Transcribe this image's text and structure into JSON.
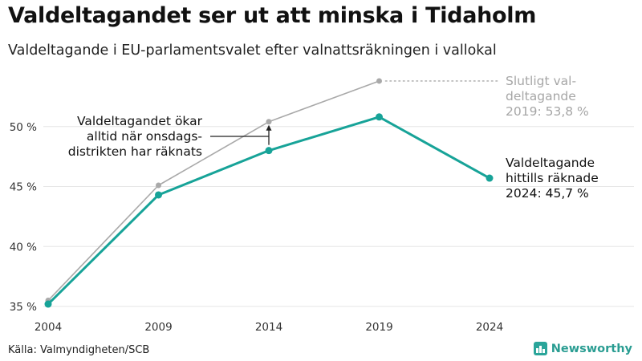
{
  "header": {
    "title": "Valdeltagandet ser ut att minska i Tidaholm",
    "subtitle": "Valdeltagande i EU-parlamentsvalet efter valnattsräkningen i vallokal"
  },
  "footer": {
    "source": "Källa: Valmyndigheten/SCB",
    "brand": "Newsworthy",
    "brand_icon": "bar-chart-icon"
  },
  "colors": {
    "final_series": "#a9a9a9",
    "preliminary_series": "#17a398",
    "grid": "#e6e6e6",
    "annotation": "#222222"
  },
  "chart_data": {
    "type": "line",
    "x": [
      2004,
      2009,
      2014,
      2019,
      2024
    ],
    "x_tick_labels": [
      "2004",
      "2009",
      "2014",
      "2019",
      "2024"
    ],
    "y_tick_values": [
      35,
      40,
      45,
      50
    ],
    "y_tick_labels": [
      "35 %",
      "40 %",
      "45 %",
      "50 %"
    ],
    "ylim": [
      35,
      55
    ],
    "grid": "horizontal",
    "series": [
      {
        "key": "final",
        "values": [
          35.5,
          45.1,
          50.4,
          53.8,
          null
        ]
      },
      {
        "key": "preliminary",
        "values": [
          35.2,
          44.3,
          48.0,
          50.8,
          45.7
        ]
      }
    ],
    "annotations": {
      "final_label": [
        "Slutligt val-",
        "deltagande",
        "2019: 53,8 %"
      ],
      "current_label": [
        "Valdeltagande",
        "hittills räknade",
        "2024: 45,7 %"
      ],
      "gap_note": [
        "Valdeltagandet ökar",
        "alltid när onsdags-",
        "distrikten har räknats"
      ]
    }
  }
}
